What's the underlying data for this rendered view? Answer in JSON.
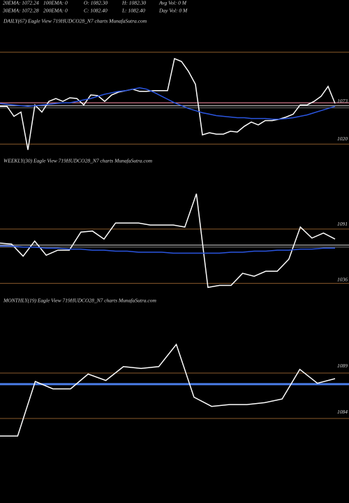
{
  "header": [
    [
      "20EMA: 1072.24",
      "100EMA: 0",
      "O: 1082.30",
      "H: 1082.30",
      "Avg Vol: 0  M"
    ],
    [
      "30EMA: 1072.28",
      "200EMA: 0",
      "C: 1082.40",
      "L: 1082.40",
      "Day Vol: 0  M"
    ]
  ],
  "chart_data": [
    {
      "type": "line",
      "title": "DAILY(67) Eagle  View  719HUDCO28_N7 charts MunafaSutra.com",
      "ylim": [
        1000,
        1178
      ],
      "yticks": [
        1073,
        1020
      ],
      "levels": [
        {
          "value": 1144,
          "color": "#8a5a2b"
        },
        {
          "value": 1073,
          "color": "#ff8fa8"
        },
        {
          "value": 1069,
          "color": "#dddddd"
        },
        {
          "value": 1066,
          "color": "#777777"
        },
        {
          "value": 1015,
          "color": "#8a5a2b"
        }
      ],
      "series": [
        {
          "name": "Price",
          "color": "#ffffff",
          "values": [
            1068,
            1068,
            1054,
            1060,
            1007,
            1070,
            1060,
            1075,
            1079,
            1075,
            1080,
            1079,
            1070,
            1084,
            1083,
            1075,
            1084,
            1088,
            1090,
            1092,
            1089,
            1089,
            1090,
            1090,
            1090,
            1135,
            1131,
            1117,
            1099,
            1028,
            1031,
            1029,
            1029,
            1033,
            1032,
            1040,
            1046,
            1042,
            1048,
            1048,
            1050,
            1053,
            1057,
            1070,
            1070,
            1075,
            1082,
            1096,
            1072
          ]
        },
        {
          "name": "EMA",
          "color": "#2a55e0",
          "values": [
            1072,
            1071,
            1070,
            1069,
            1068,
            1069,
            1070,
            1071,
            1072,
            1073,
            1073,
            1075,
            1077,
            1079,
            1082,
            1085,
            1087,
            1089,
            1090,
            1092,
            1094,
            1092,
            1088,
            1083,
            1078,
            1073,
            1069,
            1065,
            1062,
            1059,
            1057,
            1055,
            1054,
            1053,
            1052,
            1052,
            1051,
            1051,
            1051,
            1050,
            1050,
            1051,
            1052,
            1054,
            1056,
            1059,
            1062,
            1065,
            1068
          ]
        }
      ]
    },
    {
      "type": "line",
      "title": "WEEKLY(30) Eagle  View  719HUDCO28_N7 charts MunafaSutra.com",
      "ylim": [
        1024,
        1149
      ],
      "yticks": [
        1091,
        1036
      ],
      "levels": [
        {
          "value": 1088,
          "color": "#8a5a2b"
        },
        {
          "value": 1072,
          "color": "#dddddd"
        },
        {
          "value": 1070,
          "color": "#777777"
        },
        {
          "value": 1034,
          "color": "#8a5a2b"
        }
      ],
      "series": [
        {
          "name": "Price",
          "color": "#ffffff",
          "values": [
            1074,
            1073,
            1061,
            1076,
            1062,
            1067,
            1067,
            1085,
            1086,
            1078,
            1094,
            1094,
            1094,
            1092,
            1092,
            1092,
            1090,
            1123,
            1030,
            1032,
            1032,
            1044,
            1041,
            1046,
            1046,
            1058,
            1090,
            1079,
            1084,
            1078
          ]
        },
        {
          "name": "EMA",
          "color": "#2a55e0",
          "values": [
            1071,
            1071,
            1070,
            1070,
            1069,
            1069,
            1068,
            1068,
            1067,
            1067,
            1066,
            1066,
            1065,
            1065,
            1065,
            1064,
            1064,
            1064,
            1064,
            1064,
            1065,
            1065,
            1066,
            1066,
            1067,
            1067,
            1068,
            1068,
            1069,
            1069
          ]
        }
      ]
    },
    {
      "type": "line",
      "title": "MONTHLY(19) Eagle  View  719HUDCO28_N7 charts MunafaSutra.com",
      "ylim": [
        1080.4,
        1095.5
      ],
      "yticks": [
        1089,
        1084
      ],
      "levels": [
        {
          "value": 1088.4,
          "color": "#8a5a2b"
        },
        {
          "value": 1087.2,
          "color": "#4a7de8"
        },
        {
          "value": 1083.5,
          "color": "#8a5a2b"
        }
      ],
      "series": [
        {
          "name": "Price",
          "color": "#ffffff",
          "values": [
            1081.6,
            1081.6,
            1087.5,
            1086.7,
            1086.7,
            1088.3,
            1087.6,
            1089.1,
            1088.9,
            1089.1,
            1091.5,
            1085.8,
            1084.8,
            1085.0,
            1085.0,
            1085.2,
            1085.6,
            1088.8,
            1087.3,
            1087.8
          ]
        }
      ]
    }
  ]
}
